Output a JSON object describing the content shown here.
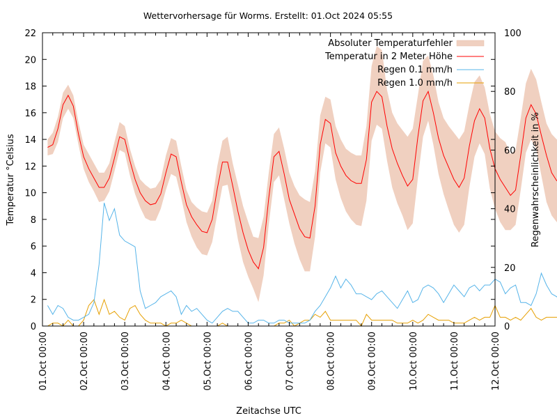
{
  "chart_data": {
    "type": "line",
    "title": "Wettervorhersage für Worms. Erstellt: 01.Oct 2024 05:55",
    "xlabel": "Zeitachse UTC",
    "ylabel": "Temperatur °Celsius",
    "y2label": "Regenwahrscheinlichkeit in %",
    "xlim_days": [
      0,
      11
    ],
    "ylim": [
      0,
      22
    ],
    "y2lim": [
      0,
      100
    ],
    "x_tick_labels": [
      "01.Oct 00:00",
      "02.Oct 00:00",
      "03.Oct 00:00",
      "04.Oct 00:00",
      "05.Oct 00:00",
      "06.Oct 00:00",
      "07.Oct 00:00",
      "08.Oct 00:00",
      "09.Oct 00:00",
      "10.Oct 00:00",
      "11.Oct 00:00",
      "12.Oct 00:00"
    ],
    "y_ticks": [
      0,
      2,
      4,
      6,
      8,
      10,
      12,
      14,
      16,
      18,
      20,
      22
    ],
    "y2_ticks": [
      0,
      20,
      40,
      60,
      80,
      100
    ],
    "legend_position": "top-right",
    "legend": [
      {
        "label": "Absoluter Temperaturfehler",
        "kind": "band",
        "color": "#f0d0c0"
      },
      {
        "label": "Temperatur in 2 Meter Höhe",
        "kind": "line",
        "color": "#ff0000"
      },
      {
        "label": "Regen 0.1 mm/h",
        "kind": "line",
        "color": "#56b4e9"
      },
      {
        "label": "Regen 1.0 mm/h",
        "kind": "line",
        "color": "#e69f00"
      }
    ],
    "x_hours_step": 3,
    "x_start_hour": 3,
    "series": [
      {
        "name": "Temperatur in 2 Meter Höhe",
        "axis": "y",
        "values": [
          13.4,
          13.6,
          14.8,
          16.6,
          17.3,
          16.5,
          14.4,
          12.7,
          11.8,
          11.1,
          10.4,
          10.4,
          11.1,
          12.6,
          14.2,
          14.0,
          12.4,
          11.0,
          10.0,
          9.4,
          9.1,
          9.2,
          9.9,
          11.5,
          12.9,
          12.7,
          10.8,
          9.1,
          8.2,
          7.6,
          7.1,
          7.0,
          8.0,
          10.3,
          12.3,
          12.3,
          10.5,
          8.6,
          7.0,
          5.7,
          4.8,
          4.3,
          5.9,
          9.6,
          12.7,
          13.1,
          11.4,
          9.5,
          8.4,
          7.3,
          6.7,
          6.6,
          9.0,
          13.6,
          15.5,
          15.2,
          13.0,
          12.0,
          11.3,
          10.9,
          10.7,
          10.7,
          12.5,
          16.8,
          17.6,
          17.2,
          15.0,
          13.3,
          12.2,
          11.3,
          10.5,
          11.0,
          14.2,
          16.9,
          17.6,
          16.0,
          14.1,
          12.8,
          11.9,
          11.0,
          10.4,
          11.1,
          13.5,
          15.4,
          16.3,
          15.6,
          13.3,
          11.8,
          11.0,
          10.4,
          9.8,
          10.2,
          12.8,
          15.6,
          16.6,
          15.9,
          14.3,
          12.8,
          11.5,
          10.9,
          10.8
        ]
      },
      {
        "name": "Absoluter Temperaturfehler",
        "axis": "y",
        "band_lower": [
          12.8,
          12.9,
          13.8,
          15.6,
          16.3,
          15.6,
          13.6,
          11.8,
          10.8,
          10.1,
          9.3,
          9.4,
          10.1,
          11.6,
          13.2,
          13.0,
          11.3,
          9.9,
          8.9,
          8.1,
          7.9,
          7.9,
          8.8,
          10.2,
          11.4,
          11.2,
          9.6,
          7.8,
          6.7,
          5.9,
          5.4,
          5.3,
          6.3,
          8.4,
          10.5,
          10.6,
          8.7,
          6.5,
          4.8,
          3.7,
          2.8,
          1.8,
          3.8,
          7.6,
          10.8,
          11.3,
          9.5,
          7.7,
          6.2,
          5.0,
          4.1,
          4.1,
          6.7,
          11.5,
          13.7,
          13.4,
          11.0,
          9.6,
          8.6,
          8.0,
          7.6,
          7.5,
          9.4,
          13.9,
          15.1,
          14.8,
          12.4,
          10.4,
          9.2,
          8.3,
          7.2,
          7.7,
          11.1,
          14.2,
          15.4,
          13.6,
          11.4,
          9.9,
          8.7,
          7.6,
          7.0,
          7.6,
          10.4,
          12.7,
          13.7,
          12.9,
          10.3,
          8.8,
          7.8,
          7.2,
          7.2,
          7.6,
          10.2,
          13.0,
          14.0,
          13.3,
          11.3,
          9.3,
          8.3,
          7.8,
          7.7
        ],
        "band_upper": [
          14.0,
          14.5,
          15.7,
          17.5,
          18.1,
          17.3,
          15.3,
          13.6,
          12.9,
          12.2,
          11.5,
          11.5,
          12.2,
          13.8,
          15.3,
          15.0,
          13.3,
          12.0,
          11.0,
          10.6,
          10.3,
          10.4,
          11.0,
          12.8,
          14.1,
          13.9,
          12.0,
          10.2,
          9.3,
          8.9,
          8.6,
          8.5,
          9.4,
          12.0,
          13.9,
          14.2,
          12.2,
          10.6,
          9.0,
          7.8,
          6.7,
          6.6,
          8.2,
          11.5,
          14.4,
          14.9,
          13.3,
          11.5,
          10.5,
          9.8,
          9.5,
          9.3,
          11.6,
          15.8,
          17.2,
          17.0,
          15.0,
          14.0,
          13.3,
          13.0,
          12.8,
          12.8,
          15.0,
          19.5,
          21.0,
          20.7,
          17.7,
          16.0,
          15.2,
          14.7,
          14.2,
          14.8,
          17.3,
          19.9,
          20.3,
          18.8,
          16.8,
          15.6,
          15.0,
          14.5,
          14.0,
          14.6,
          16.6,
          18.3,
          18.8,
          17.9,
          15.9,
          14.6,
          14.1,
          13.8,
          12.9,
          13.2,
          15.6,
          18.2,
          19.3,
          18.5,
          16.8,
          15.2,
          14.4,
          14.0,
          13.8
        ]
      },
      {
        "name": "Regen 0.1 mm/h",
        "axis": "y2",
        "values": [
          7,
          4,
          7,
          6,
          3,
          2,
          2,
          3,
          4,
          8,
          21,
          42,
          36,
          40,
          31,
          29,
          28,
          27,
          12,
          6,
          7,
          8,
          10,
          11,
          12,
          10,
          4,
          7,
          5,
          6,
          4,
          2,
          1,
          3,
          5,
          6,
          5,
          5,
          3,
          1,
          1,
          2,
          2,
          1,
          1,
          2,
          2,
          1,
          1,
          1,
          1,
          2,
          5,
          7,
          10,
          13,
          17,
          13,
          16,
          14,
          11,
          11,
          10,
          9,
          11,
          12,
          10,
          8,
          6,
          9,
          12,
          8,
          9,
          13,
          14,
          13,
          11,
          8,
          11,
          14,
          12,
          10,
          13,
          14,
          12,
          14,
          14,
          16,
          15,
          11,
          13,
          14,
          8,
          8,
          7,
          11,
          18,
          14,
          11,
          10,
          8
        ]
      },
      {
        "name": "Regen 1.0 mm/h",
        "axis": "y2",
        "values": [
          0,
          1,
          1,
          0,
          2,
          0,
          0,
          2,
          7,
          9,
          4,
          9,
          4,
          5,
          3,
          2,
          6,
          7,
          4,
          2,
          1,
          1,
          1,
          0,
          1,
          1,
          2,
          1,
          0,
          0,
          0,
          0,
          0,
          0,
          1,
          0,
          0,
          0,
          0,
          0,
          0,
          0,
          0,
          0,
          0,
          1,
          1,
          2,
          0,
          1,
          2,
          2,
          4,
          3,
          5,
          2,
          2,
          2,
          2,
          2,
          2,
          0,
          4,
          2,
          2,
          2,
          2,
          2,
          1,
          1,
          1,
          2,
          1,
          2,
          4,
          3,
          2,
          2,
          2,
          1,
          1,
          1,
          2,
          3,
          2,
          3,
          3,
          7,
          3,
          3,
          2,
          3,
          2,
          4,
          6,
          3,
          2,
          3,
          3,
          3,
          3
        ]
      }
    ]
  }
}
